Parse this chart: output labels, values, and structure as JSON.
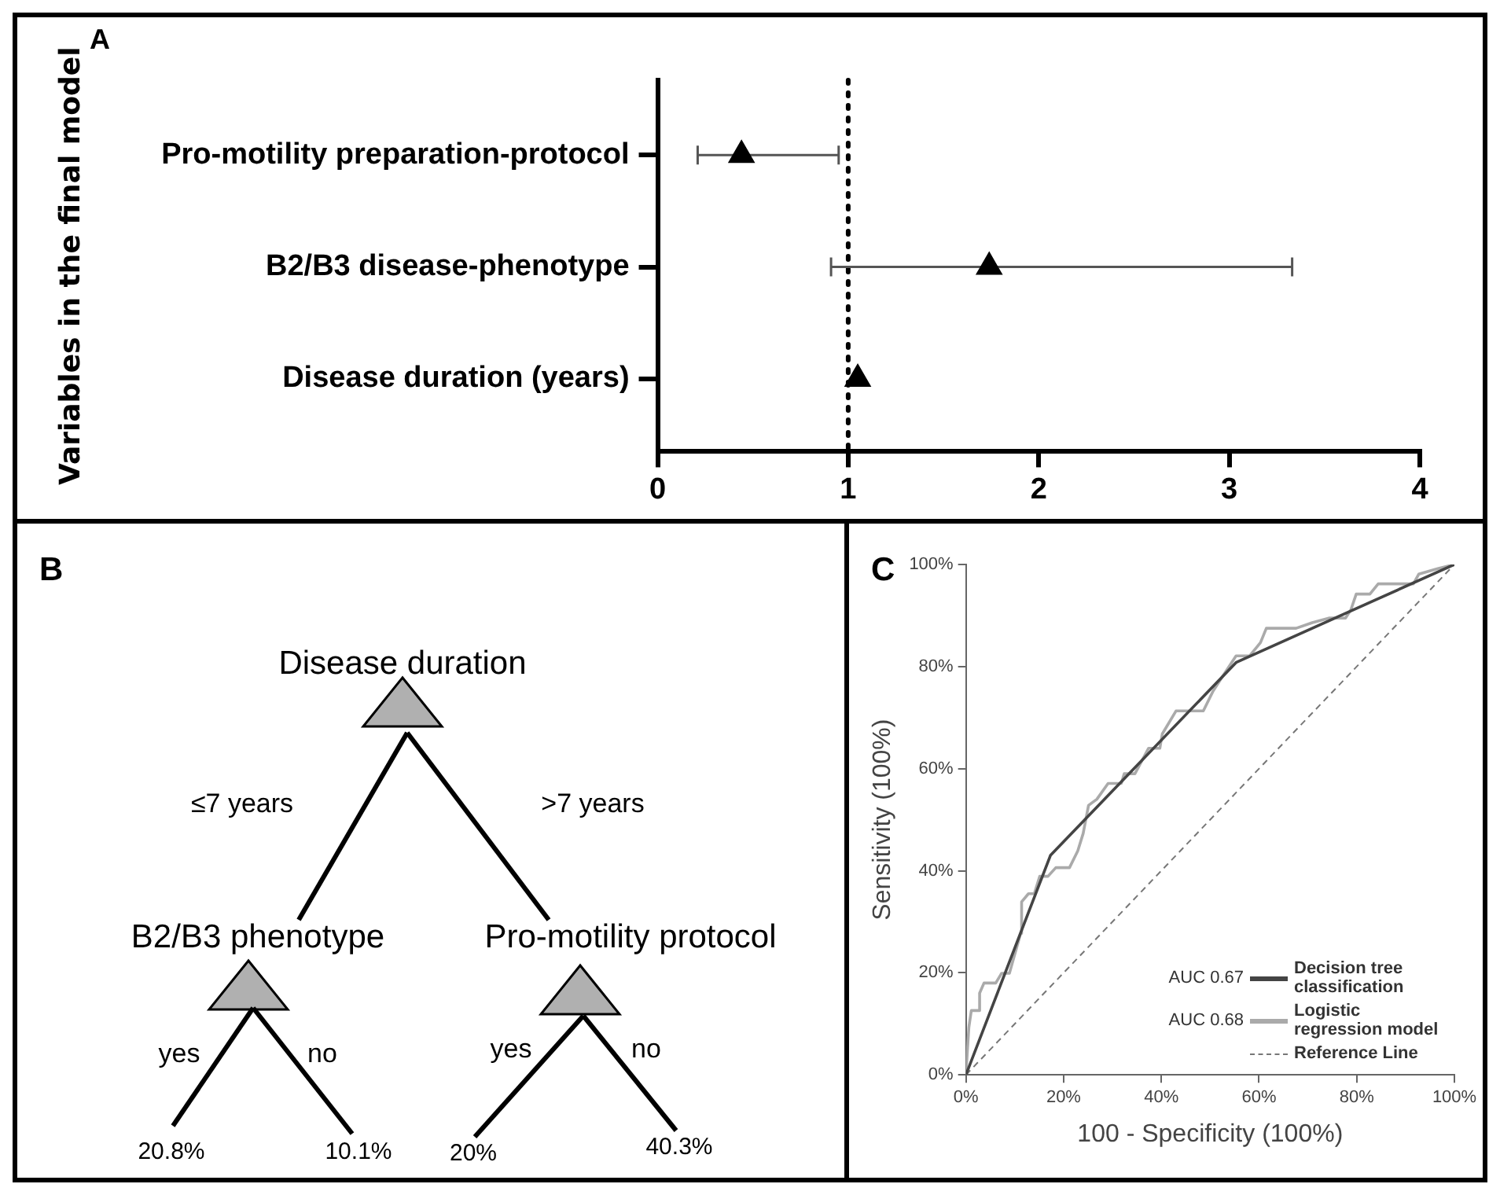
{
  "chart_data": [
    {
      "type": "scatter",
      "title": "A",
      "ylabel": "Variables in the final model",
      "orientation": "horizontal",
      "categories": [
        "Pro-motility preparation-protocol",
        "B2/B3 disease-phenotype",
        "Disease duration (years)"
      ],
      "values": [
        0.44,
        1.74,
        1.05
      ],
      "errors": [
        [
          0.21,
          0.95
        ],
        [
          0.91,
          3.33
        ],
        null
      ],
      "color": "#000000",
      "marker": "triangle",
      "xlim": [
        0,
        4
      ],
      "xticks": [
        0,
        1,
        2,
        3,
        4
      ],
      "ref_lines": [
        {
          "axis": "x",
          "value": 1,
          "line_style": "dotted",
          "color": "#000000"
        }
      ],
      "grid": false,
      "legend": false
    },
    {
      "type": "other",
      "title": "B",
      "annotations": [
        "Disease duration",
        "≤7 years",
        ">7 years",
        "B2/B3 phenotype",
        "Pro-motility protocol",
        "yes",
        "no",
        "yes",
        "no",
        "20.8%",
        "10.1%",
        "20%",
        "40.3%"
      ]
    },
    {
      "type": "line",
      "title": "C",
      "xlabel": "100 - Specificity (100%)",
      "ylabel": "Sensitivity (100%)",
      "annotations": [
        "AUC 0.67",
        "AUC 0.68"
      ],
      "series": [
        {
          "name": "Decision tree classification",
          "color": "#444444",
          "line_style": "solid",
          "x": [
            0,
            17.3,
            55.3,
            100
          ],
          "values": [
            0,
            43,
            80.8,
            100
          ]
        },
        {
          "name": "Logistic regression model",
          "color": "#aaaaaa",
          "line_style": "solid",
          "x": [
            0,
            0.3,
            0.6,
            1.1,
            2.8,
            2.8,
            3.7,
            6.1,
            7.3,
            8.9,
            11.2,
            11.4,
            12.8,
            14,
            15.1,
            16.8,
            18.4,
            21.2,
            22.9,
            24,
            25.1,
            26.8,
            29.1,
            31.8,
            32.4,
            34.6,
            37.4,
            39.7,
            40.2,
            43,
            48.6,
            50.6,
            52.5,
            55.3,
            58.1,
            60.3,
            61.5,
            67.6,
            70.9,
            74.3,
            77.7,
            78.8,
            79.9,
            82.7,
            84.4,
            91.6,
            92.7,
            96.6,
            100
          ],
          "values": [
            0,
            4.8,
            9.3,
            12.6,
            12.6,
            16,
            18,
            18,
            19.9,
            19.9,
            27.7,
            33.9,
            35.5,
            35.5,
            38.9,
            38.9,
            40.6,
            40.6,
            43.9,
            47.3,
            52.8,
            54,
            57.1,
            57.1,
            59,
            59,
            64,
            64,
            66.8,
            71.3,
            71.3,
            75.2,
            78,
            82.1,
            82.1,
            84.7,
            87.5,
            87.5,
            88.6,
            89.5,
            89.5,
            91.1,
            94.2,
            94.2,
            96.2,
            96.2,
            98.1,
            99.2,
            100
          ]
        },
        {
          "name": "Reference Line",
          "color": "#777777",
          "line_style": "dashed",
          "x": [
            0,
            100
          ],
          "values": [
            0,
            100
          ]
        }
      ],
      "xlim": [
        0,
        100
      ],
      "ylim": [
        0,
        100
      ],
      "xticks": [
        {
          "value": 0,
          "label": "0%"
        },
        {
          "value": 20,
          "label": "20%"
        },
        {
          "value": 40,
          "label": "40%"
        },
        {
          "value": 60,
          "label": "60%"
        },
        {
          "value": 80,
          "label": "80%"
        },
        {
          "value": 100,
          "label": "100%"
        }
      ],
      "yticks": [
        {
          "value": 0,
          "label": "0%"
        },
        {
          "value": 20,
          "label": "20%"
        },
        {
          "value": 40,
          "label": "40%"
        },
        {
          "value": 60,
          "label": "60%"
        },
        {
          "value": 80,
          "label": "80%"
        },
        {
          "value": 100,
          "label": "100%"
        }
      ],
      "grid": false,
      "legend": "bottom right"
    }
  ]
}
